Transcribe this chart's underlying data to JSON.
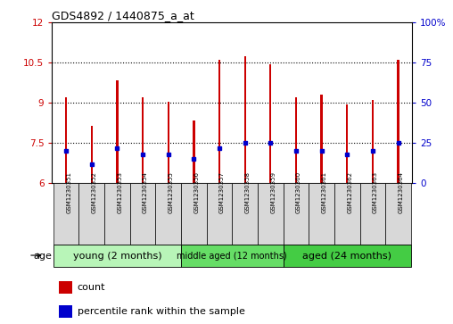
{
  "title": "GDS4892 / 1440875_a_at",
  "samples": [
    "GSM1230351",
    "GSM1230352",
    "GSM1230353",
    "GSM1230354",
    "GSM1230355",
    "GSM1230356",
    "GSM1230357",
    "GSM1230358",
    "GSM1230359",
    "GSM1230360",
    "GSM1230361",
    "GSM1230362",
    "GSM1230363",
    "GSM1230364"
  ],
  "counts": [
    9.2,
    8.15,
    9.85,
    9.2,
    9.05,
    8.35,
    10.6,
    10.75,
    10.45,
    9.2,
    9.3,
    8.95,
    9.1,
    10.6
  ],
  "percentiles": [
    20,
    12,
    22,
    18,
    18,
    15,
    22,
    25,
    25,
    20,
    20,
    18,
    20,
    25
  ],
  "bar_color": "#cc0000",
  "percentile_color": "#0000cc",
  "ylim_left": [
    6,
    12
  ],
  "ylim_right": [
    0,
    100
  ],
  "yticks_left": [
    6,
    7.5,
    9,
    10.5,
    12
  ],
  "yticks_right": [
    0,
    25,
    50,
    75,
    100
  ],
  "groups": [
    {
      "label": "young (2 months)",
      "start": 0,
      "end": 5
    },
    {
      "label": "middle aged (12 months)",
      "start": 5,
      "end": 9
    },
    {
      "label": "aged (24 months)",
      "start": 9,
      "end": 14
    }
  ],
  "group_colors": [
    "#b8f5b8",
    "#66dd66",
    "#44cc44"
  ],
  "sample_cell_color": "#d8d8d8",
  "bar_bottom": 6.0,
  "bar_width": 0.08
}
